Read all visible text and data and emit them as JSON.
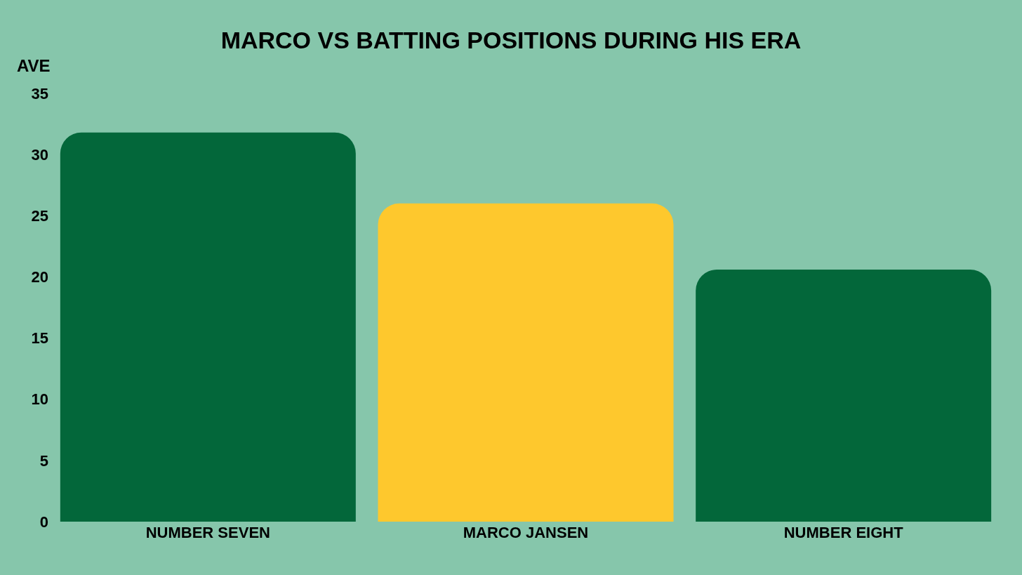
{
  "chart_data": {
    "type": "bar",
    "title": "MARCO VS BATTING POSITIONS DURING HIS ERA",
    "ylabel": "AVE",
    "categories": [
      "NUMBER SEVEN",
      "MARCO JANSEN",
      "NUMBER EIGHT"
    ],
    "values": [
      31.8,
      26.0,
      20.6
    ],
    "colors": [
      "#03673a",
      "#fec82d",
      "#03673a"
    ],
    "ylim": [
      0,
      35
    ],
    "yticks": [
      0,
      5,
      10,
      15,
      20,
      25,
      30,
      35
    ],
    "grid": false,
    "legend": false
  }
}
